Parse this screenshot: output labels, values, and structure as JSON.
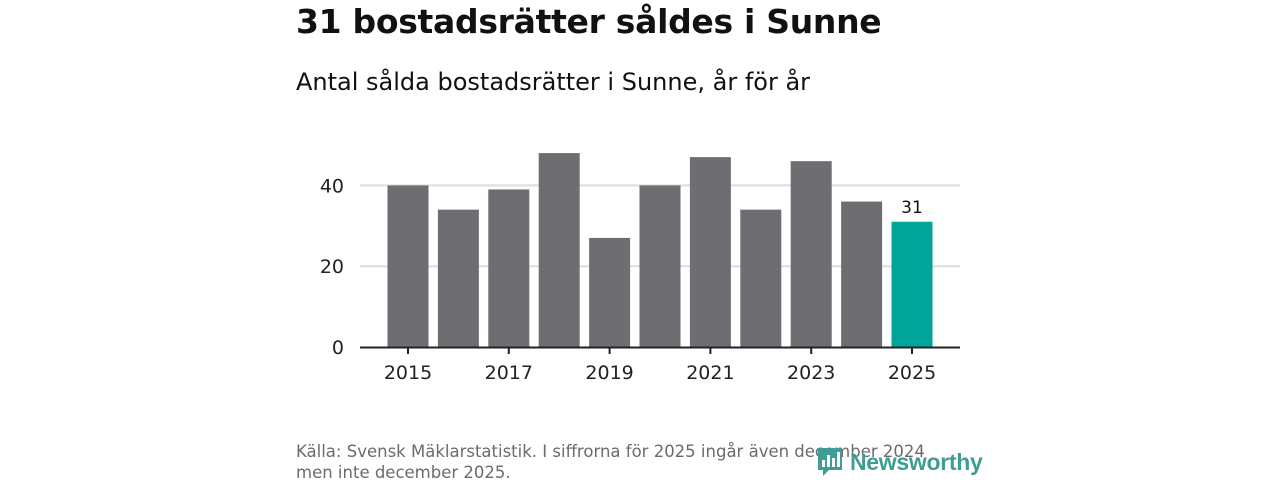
{
  "chart_data": {
    "type": "bar",
    "title": "31 bostadsrätter såldes i Sunne",
    "subtitle": "Antal sålda bostadsrätter i Sunne, år för år",
    "categories": [
      "2015",
      "2016",
      "2017",
      "2018",
      "2019",
      "2020",
      "2021",
      "2022",
      "2023",
      "2024",
      "2025"
    ],
    "values": [
      40,
      34,
      39,
      48,
      27,
      40,
      47,
      34,
      46,
      36,
      31
    ],
    "highlight_index": 10,
    "highlight_label": "31",
    "x_tick_labels": [
      "2015",
      "2017",
      "2019",
      "2021",
      "2023",
      "2025"
    ],
    "y_ticks": [
      0,
      20,
      40
    ],
    "ylim": [
      0,
      50
    ],
    "xlabel": "",
    "ylabel": "",
    "grid": true,
    "legend": "none",
    "colors": {
      "bar": "#6e6d72",
      "highlight": "#00a499",
      "grid": "#dddddd",
      "axis": "#222222"
    }
  },
  "footer": {
    "source": "Källa: Svensk Mäklarstatistik. I siffrorna för 2025 ingår även december 2024 men inte december 2025.",
    "logo_text": "Newsworthy",
    "logo_icon": "bar-chart-speech-bubble-icon",
    "logo_color": "#3f9d95"
  }
}
